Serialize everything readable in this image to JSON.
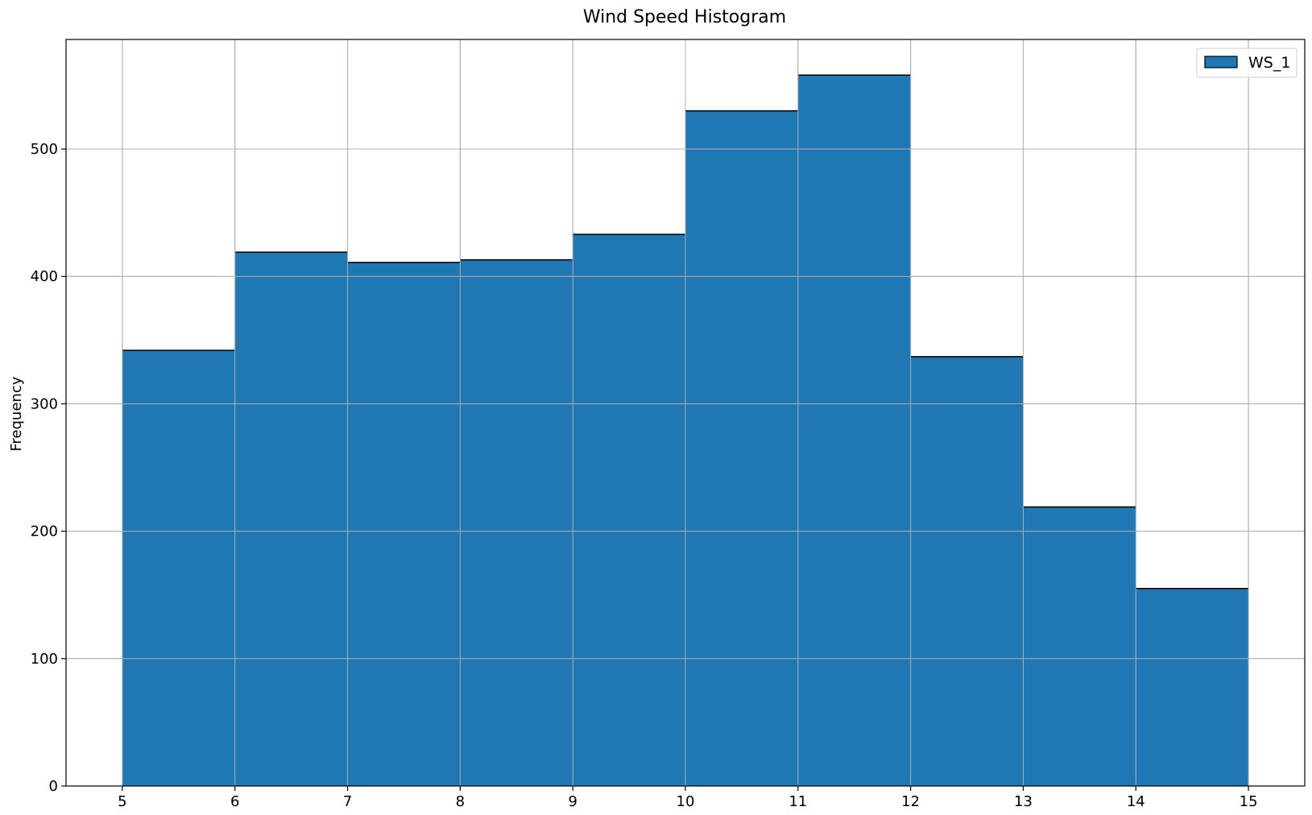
{
  "chart_data": {
    "type": "bar",
    "title": "Wind Speed Histogram",
    "xlabel": "",
    "ylabel": "Frequency",
    "bin_edges": [
      5,
      6,
      7,
      8,
      9,
      10,
      11,
      12,
      13,
      14,
      15
    ],
    "series": [
      {
        "name": "WS_1",
        "values": [
          342,
          419,
          411,
          413,
          433,
          530,
          558,
          337,
          219,
          155
        ]
      }
    ],
    "xticks": [
      5,
      6,
      7,
      8,
      9,
      10,
      11,
      12,
      13,
      14,
      15
    ],
    "yticks": [
      0,
      100,
      200,
      300,
      400,
      500
    ],
    "xlim": [
      4.5,
      15.5
    ],
    "ylim": [
      0,
      586
    ],
    "grid": true,
    "legend_position": "top-right",
    "colors": {
      "bar_fill": "#1f77b4",
      "bar_edge": "#000000",
      "grid": "#b0b0b0"
    }
  }
}
